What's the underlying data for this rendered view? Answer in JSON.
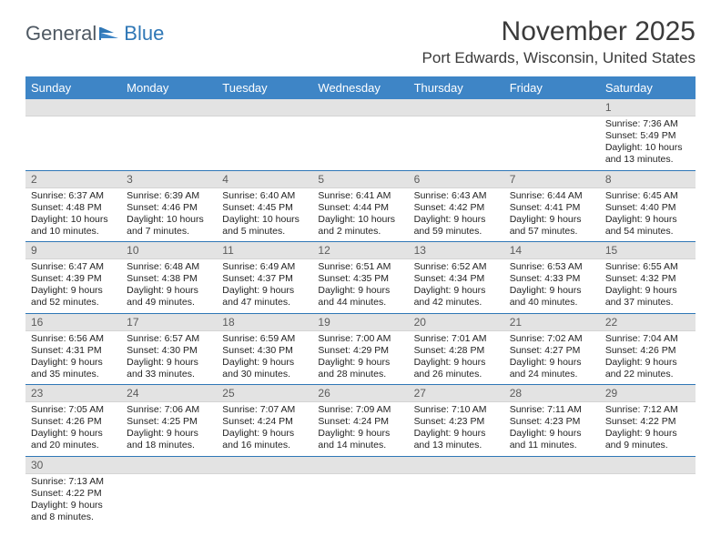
{
  "logo": {
    "part1": "General",
    "part2": "Blue"
  },
  "title": "November 2025",
  "location": "Port Edwards, Wisconsin, United States",
  "days_of_week": [
    "Sunday",
    "Monday",
    "Tuesday",
    "Wednesday",
    "Thursday",
    "Friday",
    "Saturday"
  ],
  "colors": {
    "header_bg": "#3e85c6",
    "header_text": "#ffffff",
    "divider": "#2f77b6",
    "daynum_bg": "#e3e3e3",
    "daynum_text": "#5c5c5c",
    "body_text": "#232323",
    "title_text": "#3b3b3b",
    "logo_gray": "#4f5963",
    "logo_blue": "#2f77b6"
  },
  "cells": [
    [
      {
        "n": "",
        "sr": "",
        "ss": "",
        "dl": ""
      },
      {
        "n": "",
        "sr": "",
        "ss": "",
        "dl": ""
      },
      {
        "n": "",
        "sr": "",
        "ss": "",
        "dl": ""
      },
      {
        "n": "",
        "sr": "",
        "ss": "",
        "dl": ""
      },
      {
        "n": "",
        "sr": "",
        "ss": "",
        "dl": ""
      },
      {
        "n": "",
        "sr": "",
        "ss": "",
        "dl": ""
      },
      {
        "n": "1",
        "sr": "Sunrise: 7:36 AM",
        "ss": "Sunset: 5:49 PM",
        "dl": "Daylight: 10 hours and 13 minutes."
      }
    ],
    [
      {
        "n": "2",
        "sr": "Sunrise: 6:37 AM",
        "ss": "Sunset: 4:48 PM",
        "dl": "Daylight: 10 hours and 10 minutes."
      },
      {
        "n": "3",
        "sr": "Sunrise: 6:39 AM",
        "ss": "Sunset: 4:46 PM",
        "dl": "Daylight: 10 hours and 7 minutes."
      },
      {
        "n": "4",
        "sr": "Sunrise: 6:40 AM",
        "ss": "Sunset: 4:45 PM",
        "dl": "Daylight: 10 hours and 5 minutes."
      },
      {
        "n": "5",
        "sr": "Sunrise: 6:41 AM",
        "ss": "Sunset: 4:44 PM",
        "dl": "Daylight: 10 hours and 2 minutes."
      },
      {
        "n": "6",
        "sr": "Sunrise: 6:43 AM",
        "ss": "Sunset: 4:42 PM",
        "dl": "Daylight: 9 hours and 59 minutes."
      },
      {
        "n": "7",
        "sr": "Sunrise: 6:44 AM",
        "ss": "Sunset: 4:41 PM",
        "dl": "Daylight: 9 hours and 57 minutes."
      },
      {
        "n": "8",
        "sr": "Sunrise: 6:45 AM",
        "ss": "Sunset: 4:40 PM",
        "dl": "Daylight: 9 hours and 54 minutes."
      }
    ],
    [
      {
        "n": "9",
        "sr": "Sunrise: 6:47 AM",
        "ss": "Sunset: 4:39 PM",
        "dl": "Daylight: 9 hours and 52 minutes."
      },
      {
        "n": "10",
        "sr": "Sunrise: 6:48 AM",
        "ss": "Sunset: 4:38 PM",
        "dl": "Daylight: 9 hours and 49 minutes."
      },
      {
        "n": "11",
        "sr": "Sunrise: 6:49 AM",
        "ss": "Sunset: 4:37 PM",
        "dl": "Daylight: 9 hours and 47 minutes."
      },
      {
        "n": "12",
        "sr": "Sunrise: 6:51 AM",
        "ss": "Sunset: 4:35 PM",
        "dl": "Daylight: 9 hours and 44 minutes."
      },
      {
        "n": "13",
        "sr": "Sunrise: 6:52 AM",
        "ss": "Sunset: 4:34 PM",
        "dl": "Daylight: 9 hours and 42 minutes."
      },
      {
        "n": "14",
        "sr": "Sunrise: 6:53 AM",
        "ss": "Sunset: 4:33 PM",
        "dl": "Daylight: 9 hours and 40 minutes."
      },
      {
        "n": "15",
        "sr": "Sunrise: 6:55 AM",
        "ss": "Sunset: 4:32 PM",
        "dl": "Daylight: 9 hours and 37 minutes."
      }
    ],
    [
      {
        "n": "16",
        "sr": "Sunrise: 6:56 AM",
        "ss": "Sunset: 4:31 PM",
        "dl": "Daylight: 9 hours and 35 minutes."
      },
      {
        "n": "17",
        "sr": "Sunrise: 6:57 AM",
        "ss": "Sunset: 4:30 PM",
        "dl": "Daylight: 9 hours and 33 minutes."
      },
      {
        "n": "18",
        "sr": "Sunrise: 6:59 AM",
        "ss": "Sunset: 4:30 PM",
        "dl": "Daylight: 9 hours and 30 minutes."
      },
      {
        "n": "19",
        "sr": "Sunrise: 7:00 AM",
        "ss": "Sunset: 4:29 PM",
        "dl": "Daylight: 9 hours and 28 minutes."
      },
      {
        "n": "20",
        "sr": "Sunrise: 7:01 AM",
        "ss": "Sunset: 4:28 PM",
        "dl": "Daylight: 9 hours and 26 minutes."
      },
      {
        "n": "21",
        "sr": "Sunrise: 7:02 AM",
        "ss": "Sunset: 4:27 PM",
        "dl": "Daylight: 9 hours and 24 minutes."
      },
      {
        "n": "22",
        "sr": "Sunrise: 7:04 AM",
        "ss": "Sunset: 4:26 PM",
        "dl": "Daylight: 9 hours and 22 minutes."
      }
    ],
    [
      {
        "n": "23",
        "sr": "Sunrise: 7:05 AM",
        "ss": "Sunset: 4:26 PM",
        "dl": "Daylight: 9 hours and 20 minutes."
      },
      {
        "n": "24",
        "sr": "Sunrise: 7:06 AM",
        "ss": "Sunset: 4:25 PM",
        "dl": "Daylight: 9 hours and 18 minutes."
      },
      {
        "n": "25",
        "sr": "Sunrise: 7:07 AM",
        "ss": "Sunset: 4:24 PM",
        "dl": "Daylight: 9 hours and 16 minutes."
      },
      {
        "n": "26",
        "sr": "Sunrise: 7:09 AM",
        "ss": "Sunset: 4:24 PM",
        "dl": "Daylight: 9 hours and 14 minutes."
      },
      {
        "n": "27",
        "sr": "Sunrise: 7:10 AM",
        "ss": "Sunset: 4:23 PM",
        "dl": "Daylight: 9 hours and 13 minutes."
      },
      {
        "n": "28",
        "sr": "Sunrise: 7:11 AM",
        "ss": "Sunset: 4:23 PM",
        "dl": "Daylight: 9 hours and 11 minutes."
      },
      {
        "n": "29",
        "sr": "Sunrise: 7:12 AM",
        "ss": "Sunset: 4:22 PM",
        "dl": "Daylight: 9 hours and 9 minutes."
      }
    ],
    [
      {
        "n": "30",
        "sr": "Sunrise: 7:13 AM",
        "ss": "Sunset: 4:22 PM",
        "dl": "Daylight: 9 hours and 8 minutes."
      },
      {
        "n": "",
        "sr": "",
        "ss": "",
        "dl": ""
      },
      {
        "n": "",
        "sr": "",
        "ss": "",
        "dl": ""
      },
      {
        "n": "",
        "sr": "",
        "ss": "",
        "dl": ""
      },
      {
        "n": "",
        "sr": "",
        "ss": "",
        "dl": ""
      },
      {
        "n": "",
        "sr": "",
        "ss": "",
        "dl": ""
      },
      {
        "n": "",
        "sr": "",
        "ss": "",
        "dl": ""
      }
    ]
  ]
}
